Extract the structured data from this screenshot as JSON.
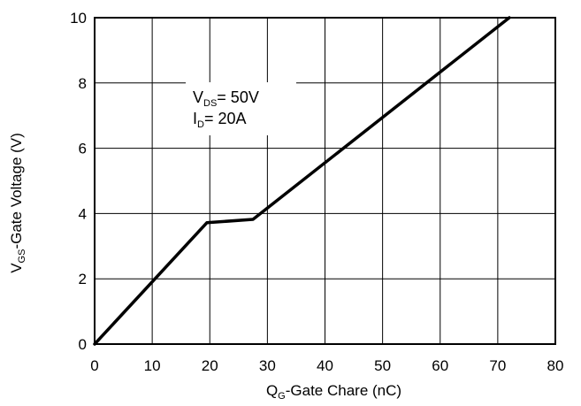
{
  "chart_data": {
    "type": "line",
    "title": "",
    "xlabel": {
      "main": "Q",
      "sub": "G",
      "rest": "-Gate Chare (nC)"
    },
    "ylabel": {
      "main": "V",
      "sub": "GS",
      "rest": "-Gate Voltage (V)"
    },
    "xlim": [
      0,
      80
    ],
    "ylim": [
      0,
      10
    ],
    "xticks": [
      0,
      10,
      20,
      30,
      40,
      50,
      60,
      70,
      80
    ],
    "yticks": [
      0,
      2,
      4,
      6,
      8,
      10
    ],
    "grid": true,
    "legend": "none",
    "annotations": [
      {
        "main": "V",
        "sub": "DS",
        "rest": "= 50V"
      },
      {
        "main": "I",
        "sub": "D",
        "rest": "= 20A"
      }
    ],
    "series": [
      {
        "x": [
          0,
          19.5,
          27.5,
          72
        ],
        "y": [
          0,
          3.72,
          3.82,
          10
        ]
      }
    ],
    "colors": {
      "line": "#000000",
      "grid": "#000000",
      "frame": "#000000"
    }
  }
}
